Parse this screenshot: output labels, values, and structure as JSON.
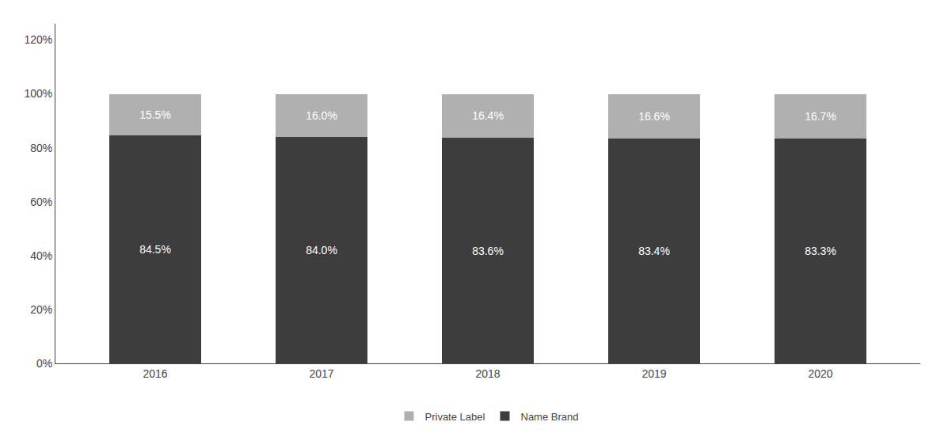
{
  "chart_data": {
    "type": "bar",
    "stacked": true,
    "categories": [
      "2016",
      "2017",
      "2018",
      "2019",
      "2020"
    ],
    "series": [
      {
        "name": "Name Brand",
        "color": "#3d3d3d",
        "values": [
          84.5,
          84.0,
          83.6,
          83.4,
          83.3
        ],
        "value_labels": [
          "84.5%",
          "84.0%",
          "83.6%",
          "83.4%",
          "83.3%"
        ]
      },
      {
        "name": "Private Label",
        "color": "#b0b0b0",
        "values": [
          15.5,
          16.0,
          16.4,
          16.6,
          16.7
        ],
        "value_labels": [
          "15.5%",
          "16.0%",
          "16.4%",
          "16.6%",
          "16.7%"
        ]
      }
    ],
    "ylim": [
      0,
      126
    ],
    "yticks": [
      {
        "value": 0,
        "label": "0%"
      },
      {
        "value": 20,
        "label": "20%"
      },
      {
        "value": 40,
        "label": "40%"
      },
      {
        "value": 60,
        "label": "60%"
      },
      {
        "value": 80,
        "label": "80%"
      },
      {
        "value": 100,
        "label": "100%"
      },
      {
        "value": 120,
        "label": "120%"
      }
    ],
    "grid": false,
    "legend": "bottom",
    "data_labels": true
  }
}
